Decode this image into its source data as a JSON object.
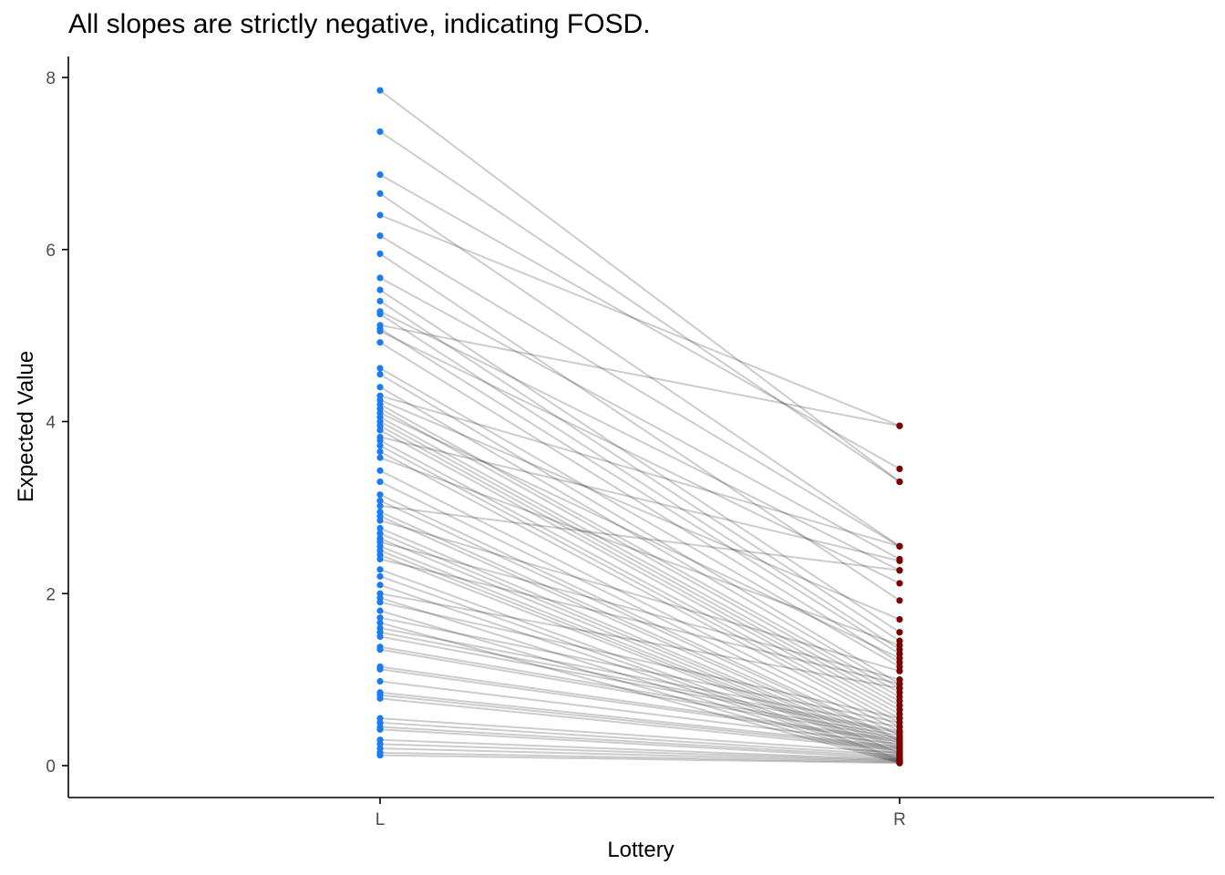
{
  "chart_data": {
    "type": "line",
    "title": "All slopes are strictly negative, indicating FOSD.",
    "xlabel": "Lottery",
    "ylabel": "Expected Value",
    "categories": [
      "L",
      "R"
    ],
    "ylim": [
      -0.37,
      8.2
    ],
    "yticks": [
      0,
      2,
      4,
      6,
      8
    ],
    "grid": false,
    "legend": "none",
    "colors": {
      "L": "#1a7cf2",
      "R": "#7a0000",
      "line": "#000000",
      "axis": "#000000"
    },
    "pairs": [
      [
        7.85,
        3.3
      ],
      [
        7.37,
        3.3
      ],
      [
        6.87,
        3.45
      ],
      [
        6.65,
        2.55
      ],
      [
        6.4,
        3.95
      ],
      [
        6.16,
        2.55
      ],
      [
        5.95,
        1.92
      ],
      [
        5.67,
        2.4
      ],
      [
        5.53,
        1.55
      ],
      [
        5.4,
        1.45
      ],
      [
        5.28,
        2.27
      ],
      [
        5.25,
        1.35
      ],
      [
        5.12,
        3.95
      ],
      [
        5.08,
        1.3
      ],
      [
        5.05,
        2.12
      ],
      [
        4.92,
        1.2
      ],
      [
        4.62,
        1.15
      ],
      [
        4.55,
        0.95
      ],
      [
        4.4,
        0.9
      ],
      [
        4.3,
        2.55
      ],
      [
        4.25,
        1.7
      ],
      [
        4.2,
        0.85
      ],
      [
        4.15,
        0.8
      ],
      [
        4.1,
        1.25
      ],
      [
        4.05,
        0.75
      ],
      [
        4.0,
        0.7
      ],
      [
        3.95,
        0.65
      ],
      [
        3.9,
        0.6
      ],
      [
        3.82,
        2.38
      ],
      [
        3.78,
        0.55
      ],
      [
        3.72,
        0.5
      ],
      [
        3.65,
        0.45
      ],
      [
        3.58,
        1.4
      ],
      [
        3.43,
        0.4
      ],
      [
        3.3,
        0.35
      ],
      [
        3.15,
        0.3
      ],
      [
        3.08,
        0.28
      ],
      [
        3.02,
        2.27
      ],
      [
        2.95,
        0.25
      ],
      [
        2.9,
        0.22
      ],
      [
        2.85,
        1.1
      ],
      [
        2.76,
        0.2
      ],
      [
        2.7,
        0.18
      ],
      [
        2.64,
        0.15
      ],
      [
        2.6,
        1.0
      ],
      [
        2.55,
        0.14
      ],
      [
        2.5,
        0.12
      ],
      [
        2.45,
        0.1
      ],
      [
        2.4,
        0.95
      ],
      [
        2.28,
        0.08
      ],
      [
        2.2,
        0.07
      ],
      [
        2.1,
        0.06
      ],
      [
        2.0,
        0.9
      ],
      [
        1.95,
        0.05
      ],
      [
        1.9,
        0.55
      ],
      [
        1.8,
        0.04
      ],
      [
        1.72,
        0.5
      ],
      [
        1.66,
        0.03
      ],
      [
        1.6,
        0.45
      ],
      [
        1.55,
        0.4
      ],
      [
        1.5,
        0.38
      ],
      [
        1.38,
        0.35
      ],
      [
        1.35,
        0.32
      ],
      [
        1.15,
        0.3
      ],
      [
        1.12,
        0.28
      ],
      [
        0.98,
        0.25
      ],
      [
        0.85,
        0.22
      ],
      [
        0.82,
        0.2
      ],
      [
        0.78,
        0.18
      ],
      [
        0.55,
        0.15
      ],
      [
        0.5,
        0.12
      ],
      [
        0.45,
        0.1
      ],
      [
        0.42,
        0.08
      ],
      [
        0.3,
        0.07
      ],
      [
        0.25,
        0.06
      ],
      [
        0.2,
        0.05
      ],
      [
        0.15,
        0.04
      ],
      [
        0.12,
        0.03
      ]
    ]
  }
}
